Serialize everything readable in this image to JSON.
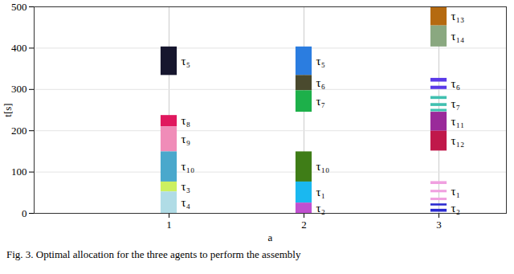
{
  "chart_data": {
    "type": "gantt",
    "x_label": "a",
    "y_label": "t[s]",
    "caption": "Fig. 3.    Optimal allocation for the three agents to perform the assembly",
    "xlim": [
      0,
      3.5
    ],
    "xticks": [
      1,
      2,
      3
    ],
    "ylim": [
      0,
      500
    ],
    "yticks": [
      0,
      100,
      200,
      300,
      400,
      500
    ],
    "grid": true,
    "tasks": [
      {
        "agent": 1,
        "label": "τ₅",
        "color": "#16162e",
        "segments": [
          [
            334,
            403
          ]
        ]
      },
      {
        "agent": 1,
        "label": "τ₈",
        "color": "#e0185e",
        "segments": [
          [
            210,
            237
          ]
        ]
      },
      {
        "agent": 1,
        "label": "τ₉",
        "color": "#f08cb8",
        "segments": [
          [
            149,
            210
          ]
        ]
      },
      {
        "agent": 1,
        "label": "τ₁₀",
        "color": "#4aa8cc",
        "segments": [
          [
            76,
            149
          ]
        ]
      },
      {
        "agent": 1,
        "label": "τ₃",
        "color": "#ccf060",
        "segments": [
          [
            52,
            76
          ]
        ]
      },
      {
        "agent": 1,
        "label": "τ₄",
        "color": "#b0dce6",
        "segments": [
          [
            0,
            52
          ]
        ]
      },
      {
        "agent": 2,
        "label": "τ₅",
        "color": "#2b7de0",
        "segments": [
          [
            334,
            403
          ]
        ]
      },
      {
        "agent": 2,
        "label": "τ₆",
        "color": "#4a4a2e",
        "segments": [
          [
            297,
            334
          ]
        ]
      },
      {
        "agent": 2,
        "label": "τ₇",
        "color": "#1db04a",
        "segments": [
          [
            245,
            297
          ]
        ]
      },
      {
        "agent": 2,
        "label": "τ₁₀",
        "color": "#3f7d17",
        "segments": [
          [
            76,
            149
          ]
        ]
      },
      {
        "agent": 2,
        "label": "τ₁",
        "color": "#1ab8f0",
        "segments": [
          [
            25,
            76
          ]
        ]
      },
      {
        "agent": 2,
        "label": "τ₂",
        "color": "#c050d0",
        "segments": [
          [
            0,
            25
          ]
        ]
      },
      {
        "agent": 3,
        "label": "τ₁₃",
        "color": "#b56a10",
        "segments": [
          [
            454,
            500
          ]
        ]
      },
      {
        "agent": 3,
        "label": "τ₁₄",
        "color": "#8aa880",
        "segments": [
          [
            403,
            454
          ]
        ]
      },
      {
        "agent": 3,
        "label": "τ₆",
        "color": "#5a3ae8",
        "segments": [
          [
            318,
            327
          ],
          [
            300,
            308
          ]
        ]
      },
      {
        "agent": 3,
        "label": "τ₇",
        "color": "#40c0b0",
        "segments": [
          [
            276,
            283
          ],
          [
            259,
            266
          ],
          [
            246,
            252
          ]
        ]
      },
      {
        "agent": 3,
        "label": "τ₁₁",
        "color": "#9a2a9a",
        "segments": [
          [
            199,
            245
          ]
        ]
      },
      {
        "agent": 3,
        "label": "τ₁₂",
        "color": "#c0184a",
        "segments": [
          [
            151,
            199
          ]
        ]
      },
      {
        "agent": 3,
        "label": "τ₁",
        "color": "#f0a0e0",
        "segments": [
          [
            70,
            77
          ],
          [
            50,
            56
          ],
          [
            31,
            37
          ]
        ]
      },
      {
        "agent": 3,
        "label": "τ₂",
        "color": "#2a2ad0",
        "segments": [
          [
            18,
            23
          ],
          [
            3,
            10
          ]
        ]
      }
    ]
  }
}
